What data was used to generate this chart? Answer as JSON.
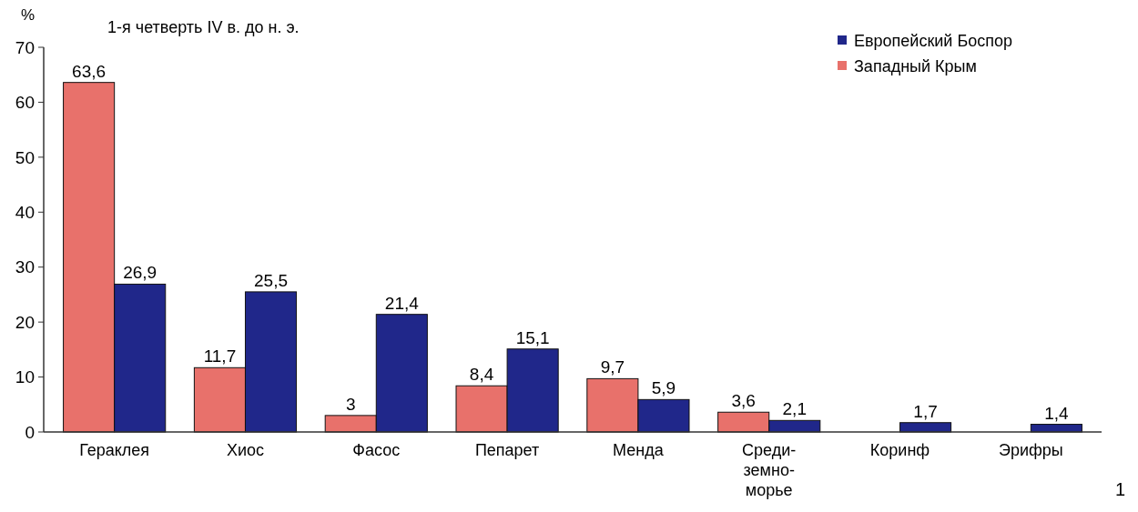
{
  "chart_data": {
    "type": "bar",
    "title": "1-я четверть IV в. до н. э.",
    "ylabel": "%",
    "categories": [
      "Гераклея",
      "Хиос",
      "Фасос",
      "Пепарет",
      "Менда",
      "Среди-\nземно-\nморье",
      "Коринф",
      "Эрифры"
    ],
    "series": [
      {
        "name": "Западный Крым",
        "color": "#e8716b",
        "values": [
          63.6,
          11.7,
          3,
          8.4,
          9.7,
          3.6,
          null,
          null
        ],
        "value_labels": [
          "63,6",
          "11,7",
          "3",
          "8,4",
          "9,7",
          "3,6",
          null,
          null
        ]
      },
      {
        "name": "Европейский Боспор",
        "color": "#20278a",
        "values": [
          26.9,
          25.5,
          21.4,
          15.1,
          5.9,
          2.1,
          1.7,
          1.4
        ],
        "value_labels": [
          "26,9",
          "25,5",
          "21,4",
          "15,1",
          "5,9",
          "2,1",
          "1,7",
          "1,4"
        ]
      }
    ],
    "ylim": [
      0,
      70
    ],
    "yticks": [
      0,
      10,
      20,
      30,
      40,
      50,
      60,
      70
    ],
    "legend": "top right",
    "annotations": [
      "1"
    ]
  }
}
